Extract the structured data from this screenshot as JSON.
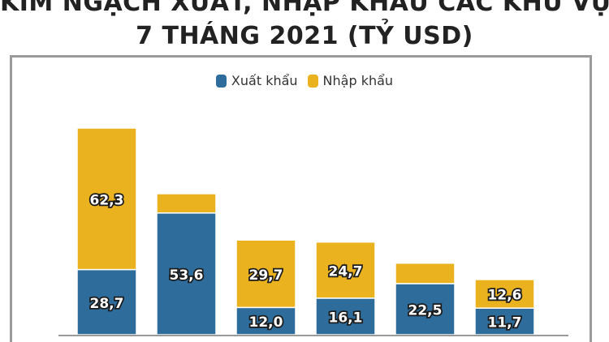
{
  "title_line1": "KIM NGẠCH XUẤT, NHẬP KHẨU CÁC KHU VỰC",
  "title_line2": "7 THÁNG 2021 (TỶ USD)",
  "colors": {
    "export": "#2e6c9b",
    "import": "#eab21e",
    "axis": "#9a9a9a"
  },
  "chart_data": {
    "type": "bar",
    "stacked": true,
    "categories": [
      "",
      "",
      "",
      "",
      "",
      ""
    ],
    "series": [
      {
        "name": "Xuất khẩu",
        "values": [
          28.7,
          53.6,
          12.0,
          16.1,
          22.5,
          11.7
        ],
        "labels": [
          "28,7",
          "53,6",
          "12,0",
          "16,1",
          "22,5",
          "11,7"
        ]
      },
      {
        "name": "Nhập khẩu",
        "values": [
          62.3,
          8.5,
          29.7,
          24.7,
          9.0,
          12.6
        ],
        "labels": [
          "62,3",
          "",
          "29,7",
          "24,7",
          "",
          "12,6"
        ]
      }
    ],
    "ylim": [
      0,
      110
    ],
    "legend_position": "top-center",
    "grid": false
  }
}
